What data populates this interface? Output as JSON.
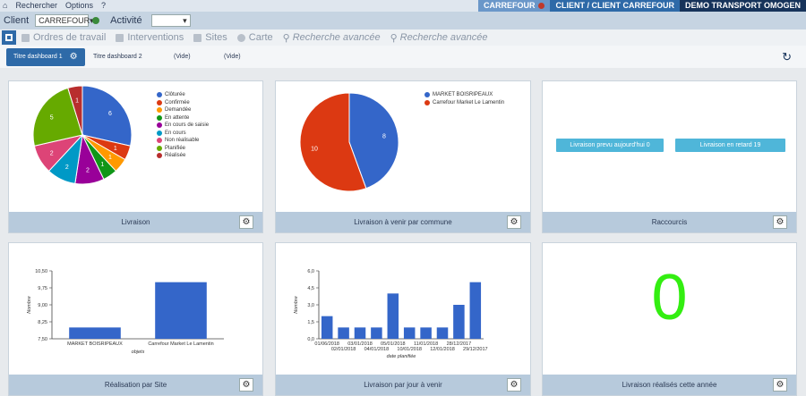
{
  "topbar": {
    "menu": [
      "Rechercher",
      "Options",
      "?"
    ],
    "seg1": "CARREFOUR",
    "seg2": "CLIENT / CLIENT CARREFOUR",
    "seg3": "DEMO TRANSPORT OMOGEN"
  },
  "clientbar": {
    "client_label": "Client",
    "client_value": "CARREFOUR",
    "activity_label": "Activité",
    "activity_value": ""
  },
  "nav": {
    "items": [
      "Ordres de travail",
      "Interventions",
      "Sites",
      "Carte",
      "Recherche avancée",
      "Recherche avancée"
    ]
  },
  "tabs": {
    "active": "Titre dashboard 1",
    "t2": "Titre dashboard 2",
    "t3": "(Vide)",
    "t4": "(Vide)"
  },
  "widgets": {
    "w1_title": "Livraison",
    "w2_title": "Livraison à venir par commune",
    "w3_title": "Raccourcis",
    "w4_title": "Réalisation par Site",
    "w5_title": "Livraison par jour à venir",
    "w6_title": "Livraison réalisés cette année",
    "shortcut1": "Livraison prevu aujourd'hui 0",
    "shortcut2": "Livraison en retard 19",
    "big_value": "0"
  },
  "colors": {
    "accent": "#2e6aa8",
    "bar": "#3466c9"
  },
  "chart_data": [
    {
      "type": "pie",
      "title": "",
      "labels": [
        "Clôturée",
        "Confirmée",
        "Demandée",
        "En attente",
        "En cours de saisie",
        "En cours",
        "Non réalisable",
        "Planifiée",
        "Réalisée"
      ],
      "values": [
        6,
        1,
        1,
        1,
        2,
        2,
        2,
        5,
        1
      ],
      "colors": [
        "#3466c9",
        "#dc3912",
        "#ff9900",
        "#109618",
        "#990099",
        "#0099c6",
        "#dd4477",
        "#66aa00",
        "#b82e2e"
      ]
    },
    {
      "type": "pie",
      "title": "",
      "labels": [
        "MARKET BOISRIPEAUX",
        "Carrefour Market Le Lamentin"
      ],
      "values": [
        8,
        10
      ],
      "colors": [
        "#3466c9",
        "#dc3912"
      ]
    },
    {
      "type": "bar",
      "categories": [
        "MARKET BOISRIPEAUX",
        "Carrefour Market Le Lamentin"
      ],
      "values": [
        8.0,
        10.0
      ],
      "xlabel": "objets",
      "ylabel": "Nombre",
      "yticks": [
        "7,50",
        "8,25",
        "9,00",
        "9,75",
        "10,50"
      ],
      "ylim": [
        7.5,
        10.5
      ]
    },
    {
      "type": "bar",
      "categories": [
        "01/06/2018",
        "02/01/2018",
        "03/01/2018",
        "04/01/2018",
        "05/01/2018",
        "10/01/2018",
        "11/01/2018",
        "12/01/2018",
        "28/12/2017",
        "29/12/2017"
      ],
      "values": [
        2,
        1,
        1,
        1,
        4,
        1,
        1,
        1,
        3,
        5
      ],
      "xlabel": "date planifiée",
      "ylabel": "Nombre",
      "yticks": [
        "0,0",
        "1,5",
        "3,0",
        "4,5",
        "6,0"
      ],
      "ylim": [
        0,
        6
      ]
    }
  ]
}
